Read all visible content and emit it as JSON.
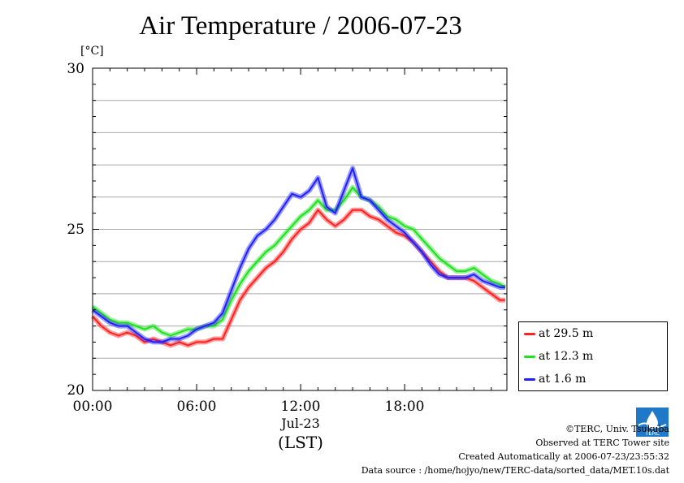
{
  "chart_data": {
    "type": "line",
    "title": "Air Temperature / 2006-07-23",
    "unit_label": "[°C]",
    "ylim": [
      20,
      30
    ],
    "y_ticks": [
      "30",
      "25",
      "20"
    ],
    "x_range_hours": [
      0,
      23.9
    ],
    "x_ticks": [
      "00:00",
      "06:00",
      "12:00",
      "18:00"
    ],
    "x_date_label": "Jul-23",
    "x_unit_label": "(LST)",
    "grid": true,
    "legend_position": "bottom-right, outside plot",
    "series": [
      {
        "name": "at 29.5 m",
        "color": "#ff2020",
        "x": [
          0,
          0.5,
          1,
          1.5,
          2,
          2.5,
          3,
          3.5,
          4,
          4.5,
          5,
          5.5,
          6,
          6.5,
          7,
          7.5,
          8,
          8.5,
          9,
          9.5,
          10,
          10.5,
          11,
          11.5,
          12,
          12.5,
          13,
          13.5,
          14,
          14.5,
          15,
          15.5,
          16,
          16.5,
          17,
          17.5,
          18,
          18.5,
          19,
          19.5,
          20,
          20.5,
          21,
          21.5,
          22,
          22.5,
          23,
          23.5,
          23.8
        ],
        "values": [
          22.3,
          22.0,
          21.8,
          21.7,
          21.8,
          21.7,
          21.5,
          21.6,
          21.5,
          21.4,
          21.5,
          21.4,
          21.5,
          21.5,
          21.6,
          21.6,
          22.2,
          22.8,
          23.2,
          23.5,
          23.8,
          24.0,
          24.3,
          24.7,
          25.0,
          25.2,
          25.6,
          25.3,
          25.1,
          25.3,
          25.6,
          25.6,
          25.4,
          25.3,
          25.1,
          24.9,
          24.8,
          24.6,
          24.3,
          24.0,
          23.7,
          23.5,
          23.5,
          23.5,
          23.4,
          23.2,
          23.0,
          22.8,
          22.8
        ]
      },
      {
        "name": "at 12.3 m",
        "color": "#20e020",
        "x": [
          0,
          0.5,
          1,
          1.5,
          2,
          2.5,
          3,
          3.5,
          4,
          4.5,
          5,
          5.5,
          6,
          6.5,
          7,
          7.5,
          8,
          8.5,
          9,
          9.5,
          10,
          10.5,
          11,
          11.5,
          12,
          12.5,
          13,
          13.5,
          14,
          14.5,
          15,
          15.5,
          16,
          16.5,
          17,
          17.5,
          18,
          18.5,
          19,
          19.5,
          20,
          20.5,
          21,
          21.5,
          22,
          22.5,
          23,
          23.5,
          23.8
        ],
        "values": [
          22.6,
          22.4,
          22.2,
          22.1,
          22.1,
          22.0,
          21.9,
          22.0,
          21.8,
          21.7,
          21.8,
          21.9,
          21.9,
          22.0,
          22.0,
          22.2,
          22.8,
          23.3,
          23.7,
          24.0,
          24.3,
          24.5,
          24.8,
          25.1,
          25.4,
          25.6,
          25.9,
          25.6,
          25.6,
          25.9,
          26.3,
          26.0,
          25.9,
          25.7,
          25.4,
          25.3,
          25.1,
          25.0,
          24.7,
          24.4,
          24.1,
          23.9,
          23.7,
          23.7,
          23.8,
          23.6,
          23.4,
          23.3,
          23.2
        ]
      },
      {
        "name": "at 1.6 m",
        "color": "#2020ff",
        "x": [
          0,
          0.5,
          1,
          1.5,
          2,
          2.5,
          3,
          3.5,
          4,
          4.5,
          5,
          5.5,
          6,
          6.5,
          7,
          7.5,
          8,
          8.5,
          9,
          9.5,
          10,
          10.5,
          11,
          11.5,
          12,
          12.5,
          13,
          13.5,
          14,
          14.5,
          15,
          15.5,
          16,
          16.5,
          17,
          17.5,
          18,
          18.5,
          19,
          19.5,
          20,
          20.5,
          21,
          21.5,
          22,
          22.5,
          23,
          23.5,
          23.8
        ],
        "values": [
          22.5,
          22.3,
          22.1,
          22.0,
          22.0,
          21.8,
          21.6,
          21.5,
          21.5,
          21.6,
          21.6,
          21.7,
          21.9,
          22.0,
          22.1,
          22.4,
          23.1,
          23.8,
          24.4,
          24.8,
          25.0,
          25.3,
          25.7,
          26.1,
          26.0,
          26.2,
          26.6,
          25.7,
          25.5,
          26.2,
          26.9,
          26.0,
          25.9,
          25.6,
          25.3,
          25.1,
          24.9,
          24.6,
          24.3,
          23.9,
          23.6,
          23.5,
          23.5,
          23.5,
          23.6,
          23.4,
          23.3,
          23.2,
          23.2
        ]
      }
    ]
  },
  "footer": {
    "copyright": "©TERC, Univ. Tsukuba",
    "observed": "Observed at TERC Tower site",
    "created": "Created Automatically at 2006-07-23/23:55:32",
    "source": "Data source : /home/hojyo/new/TERC-data/sorted_data/MET.10s.dat",
    "logo_text": "TERC"
  }
}
